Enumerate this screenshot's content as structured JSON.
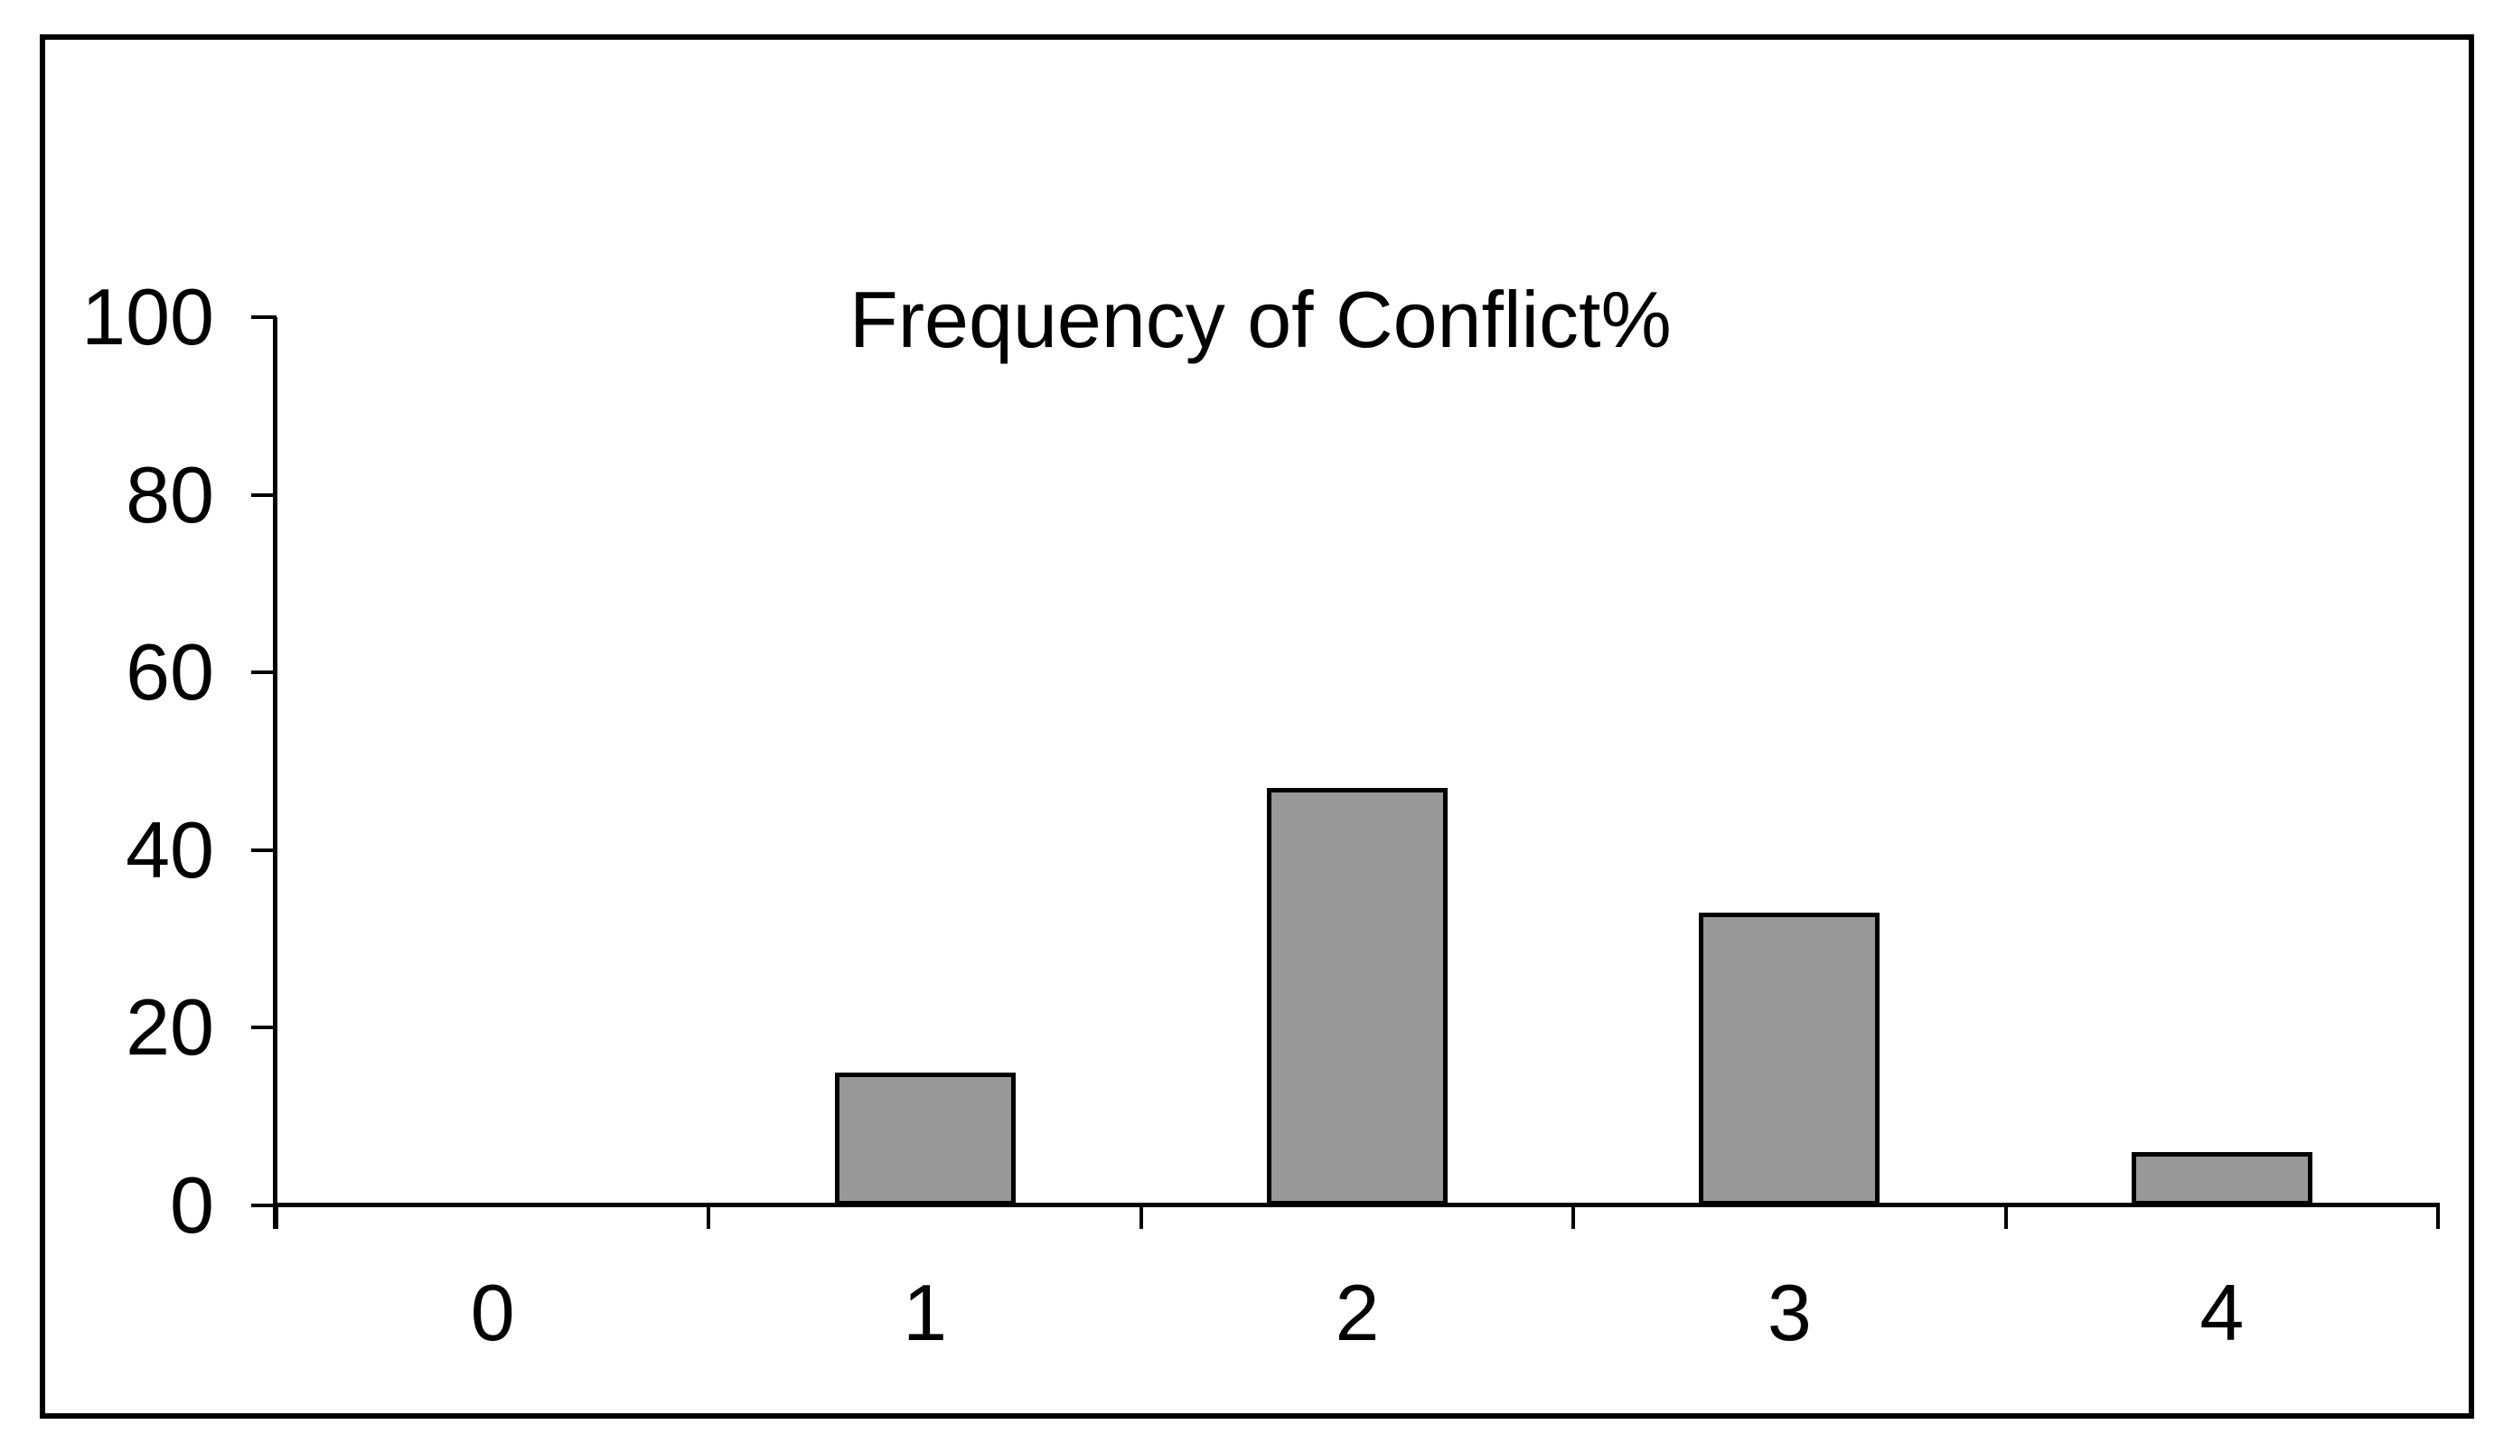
{
  "window": {
    "background": "#ffffff",
    "border_color": "#000000"
  },
  "chart_data": {
    "type": "bar",
    "title": "Frequency of Conflict%",
    "categories": [
      "0",
      "1",
      "2",
      "3",
      "4"
    ],
    "values": [
      0,
      15,
      47,
      33,
      6
    ],
    "xlabel": "",
    "ylabel": "",
    "ylim": [
      0,
      100
    ],
    "yticks": [
      0,
      20,
      40,
      60,
      80,
      100
    ],
    "grid": false,
    "legend": false,
    "bar_fill": "#989898",
    "bar_outline": "#000000",
    "axis_color": "#000000",
    "text_color": "#000000"
  }
}
